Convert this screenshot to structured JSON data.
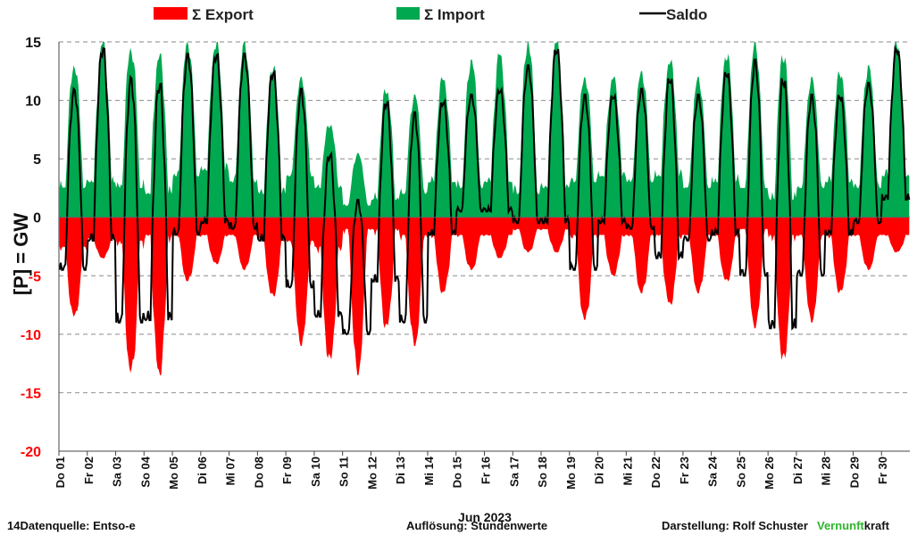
{
  "chart_data": {
    "type": "area",
    "title": "",
    "ylabel": "[P]  = GW",
    "xlabel": "Jun 2023",
    "ylim": [
      -20,
      15
    ],
    "yticks": [
      15,
      10,
      5,
      0,
      -5,
      -10,
      -15,
      -20
    ],
    "grid": true,
    "legend_position": "top",
    "colors": {
      "export": "#ff0000",
      "import": "#00a84f",
      "saldo": "#000000",
      "negative_tick": "#ff0000",
      "positive_tick": "#111111"
    },
    "x_labels": [
      "Do 01",
      "Fr 02",
      "Sa 03",
      "So 04",
      "Mo 05",
      "Di 06",
      "Mi 07",
      "Do 08",
      "Fr 09",
      "Sa 10",
      "So 11",
      "Mo 12",
      "Di 13",
      "Mi 14",
      "Do 15",
      "Fr 16",
      "Sa 17",
      "So 18",
      "Mo 19",
      "Di 20",
      "Mi 21",
      "Do 22",
      "Fr 23",
      "Sa 24",
      "So 25",
      "Mo 26",
      "Di 27",
      "Mi 28",
      "Do 29",
      "Fr 30"
    ],
    "series": [
      {
        "name": "Σ Export",
        "kind": "area",
        "color": "#ff0000",
        "day_min": [
          -8.5,
          -3.5,
          -13.3,
          -13.5,
          -5.5,
          -4.0,
          -4.5,
          -6.8,
          -11.0,
          -12.3,
          -13.5,
          -9.5,
          -11.0,
          -6.5,
          -4.5,
          -3.5,
          -3.0,
          -3.0,
          -8.8,
          -5.0,
          -6.5,
          -7.5,
          -6.5,
          -5.5,
          -9.5,
          -12.3,
          -9.0,
          -6.5,
          -4.5,
          -3.0
        ],
        "day_max": [
          -2.5,
          -1.8,
          -2.0,
          -1.5,
          -1.5,
          -1.5,
          -1.5,
          -1.8,
          -2.0,
          -2.5,
          -1.0,
          -1.0,
          -1.5,
          -1.5,
          -1.5,
          -1.5,
          -1.0,
          -1.0,
          -1.5,
          -1.5,
          -1.5,
          -1.5,
          -1.5,
          -1.5,
          -1.0,
          -1.5,
          -1.5,
          -1.5,
          -1.5,
          -1.5
        ]
      },
      {
        "name": "Σ Import",
        "kind": "area",
        "color": "#00a84f",
        "day_min": [
          2.5,
          3.0,
          2.5,
          2.0,
          3.5,
          4.0,
          3.0,
          2.0,
          3.5,
          2.5,
          1.0,
          1.5,
          2.0,
          3.0,
          2.5,
          3.0,
          2.0,
          2.5,
          3.0,
          3.5,
          3.0,
          3.5,
          2.5,
          3.0,
          2.5,
          1.5,
          2.5,
          3.0,
          2.5,
          3.5
        ],
        "day_max": [
          13.0,
          15.0,
          14.5,
          14.0,
          15.0,
          15.0,
          15.0,
          13.0,
          12.0,
          8.0,
          5.5,
          11.0,
          10.5,
          12.0,
          13.5,
          14.0,
          15.0,
          15.0,
          12.0,
          12.0,
          12.5,
          13.5,
          12.0,
          14.0,
          15.0,
          14.0,
          12.0,
          12.5,
          13.0,
          15.0
        ]
      },
      {
        "name": "Saldo",
        "kind": "line",
        "color": "#000000",
        "day_min": [
          -4.5,
          -2.0,
          -9.0,
          -8.8,
          -1.5,
          -0.5,
          -1.0,
          -2.0,
          -6.0,
          -8.5,
          -10.0,
          -5.5,
          -9.0,
          -1.5,
          0.5,
          0.5,
          -0.5,
          -0.5,
          -4.5,
          -0.5,
          -1.0,
          -3.5,
          -2.0,
          -1.5,
          -5.0,
          -9.5,
          -5.0,
          -1.5,
          -0.5,
          1.5
        ],
        "day_max": [
          11.0,
          14.5,
          12.0,
          11.5,
          14.0,
          14.0,
          14.0,
          12.5,
          11.0,
          5.5,
          1.5,
          10.0,
          9.0,
          10.0,
          10.5,
          11.0,
          13.0,
          14.5,
          10.5,
          10.5,
          11.0,
          12.0,
          10.5,
          12.5,
          13.5,
          12.0,
          10.5,
          10.5,
          11.5,
          14.5
        ]
      }
    ]
  },
  "legend": {
    "export_label": "Σ Export",
    "import_label": "Σ Import",
    "saldo_label": "Saldo"
  },
  "footer": {
    "source": "14Datenquelle: Entso-e",
    "resolution": "Auflösung: Stundenwerte",
    "author": "Darstellung:  Rolf Schuster",
    "brand_green": "Vernunft",
    "brand_rest": "kraft"
  }
}
